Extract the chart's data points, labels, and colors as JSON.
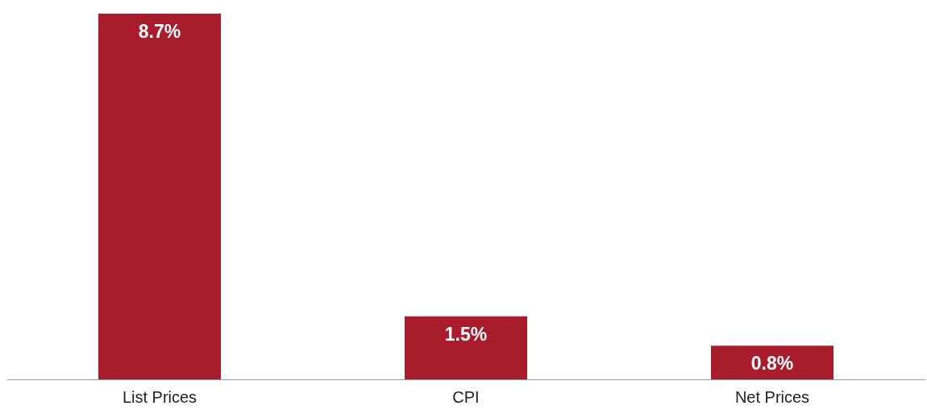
{
  "chart_data": {
    "type": "bar",
    "categories": [
      "List Prices",
      "CPI",
      "Net Prices"
    ],
    "values": [
      8.7,
      1.5,
      0.8
    ],
    "value_labels": [
      "8.7%",
      "1.5%",
      "0.8%"
    ],
    "color": "#a81c2c"
  }
}
